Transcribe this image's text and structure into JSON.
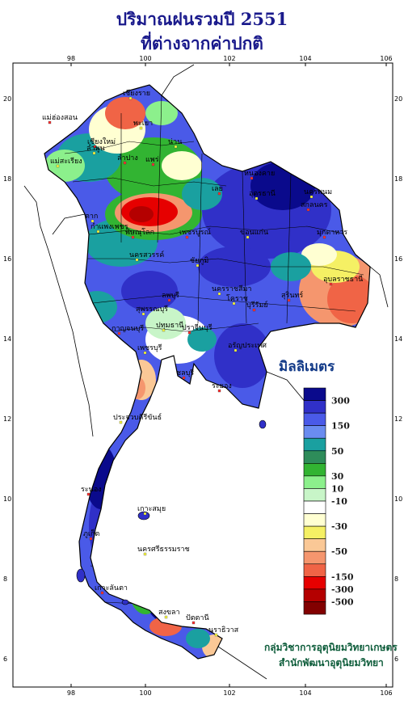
{
  "title_line1": "ปริมาณฝนรวมปี 2551",
  "title_line2": "ที่ต่างจากค่าปกติ",
  "x_ticks": [
    "98",
    "100",
    "102",
    "104",
    "106"
  ],
  "y_ticks": [
    "20",
    "18",
    "16",
    "14",
    "12",
    "10",
    "8",
    "6"
  ],
  "legend": {
    "title": "มิลลิเมตร",
    "labels": [
      "300",
      "150",
      "50",
      "30",
      "10",
      "-10",
      "-30",
      "-50",
      "-150",
      "-300",
      "-500"
    ],
    "colors": [
      "#0a0a8c",
      "#3030c8",
      "#4a5ae8",
      "#6a8cf0",
      "#1aa0a0",
      "#2e8c5a",
      "#32b432",
      "#8cf08c",
      "#c8f5c8",
      "#ffffff",
      "#ffffd2",
      "#f5f064",
      "#fac896",
      "#f5966e",
      "#f06446",
      "#e60000",
      "#b40000",
      "#820000"
    ]
  },
  "provinces": [
    "เชียงราย",
    "แม่ฮ่องสอน",
    "พะเยา",
    "เชียงใหม่",
    "ลำพูน",
    "ลำปาง",
    "น่าน",
    "แพร่",
    "แม่สะเรียง",
    "หนองคาย",
    "นครพนม",
    "สกลนคร",
    "อุดรธานี",
    "เลย",
    "ตาก",
    "พิษณุโลก",
    "ขอนแก่น",
    "มุกดาหาร",
    "กำแพงเพชร",
    "เพชรบูรณ์",
    "นครสวรรค์",
    "อุบลราชธานี",
    "ชัยภูมิ",
    "ลพบุรี",
    "นครราชสีมา",
    "สุรินทร์",
    "โคราช",
    "บุรีรัมย์",
    "สุพรรณบุรี",
    "กาญจนบุรี",
    "ปทุมธานี",
    "ปราจีนบุรี",
    "อรัญประเทศ",
    "ชลบุรี",
    "เพชรบุรี",
    "ระยอง",
    "ประจวบคีรีขันธ์",
    "ระนอง",
    "เกาะสมุย",
    "ภูเก็ต",
    "นครศรีธรรมราช",
    "เกาะลันตา",
    "สงขลา",
    "ปัตตานี",
    "นราธิวาส"
  ],
  "credit_line1": "กลุ่มวิชาการอุตุนิยมวิทยาเกษตร",
  "credit_line2": "สำนักพัฒนาอุตุนิยมวิทยา"
}
